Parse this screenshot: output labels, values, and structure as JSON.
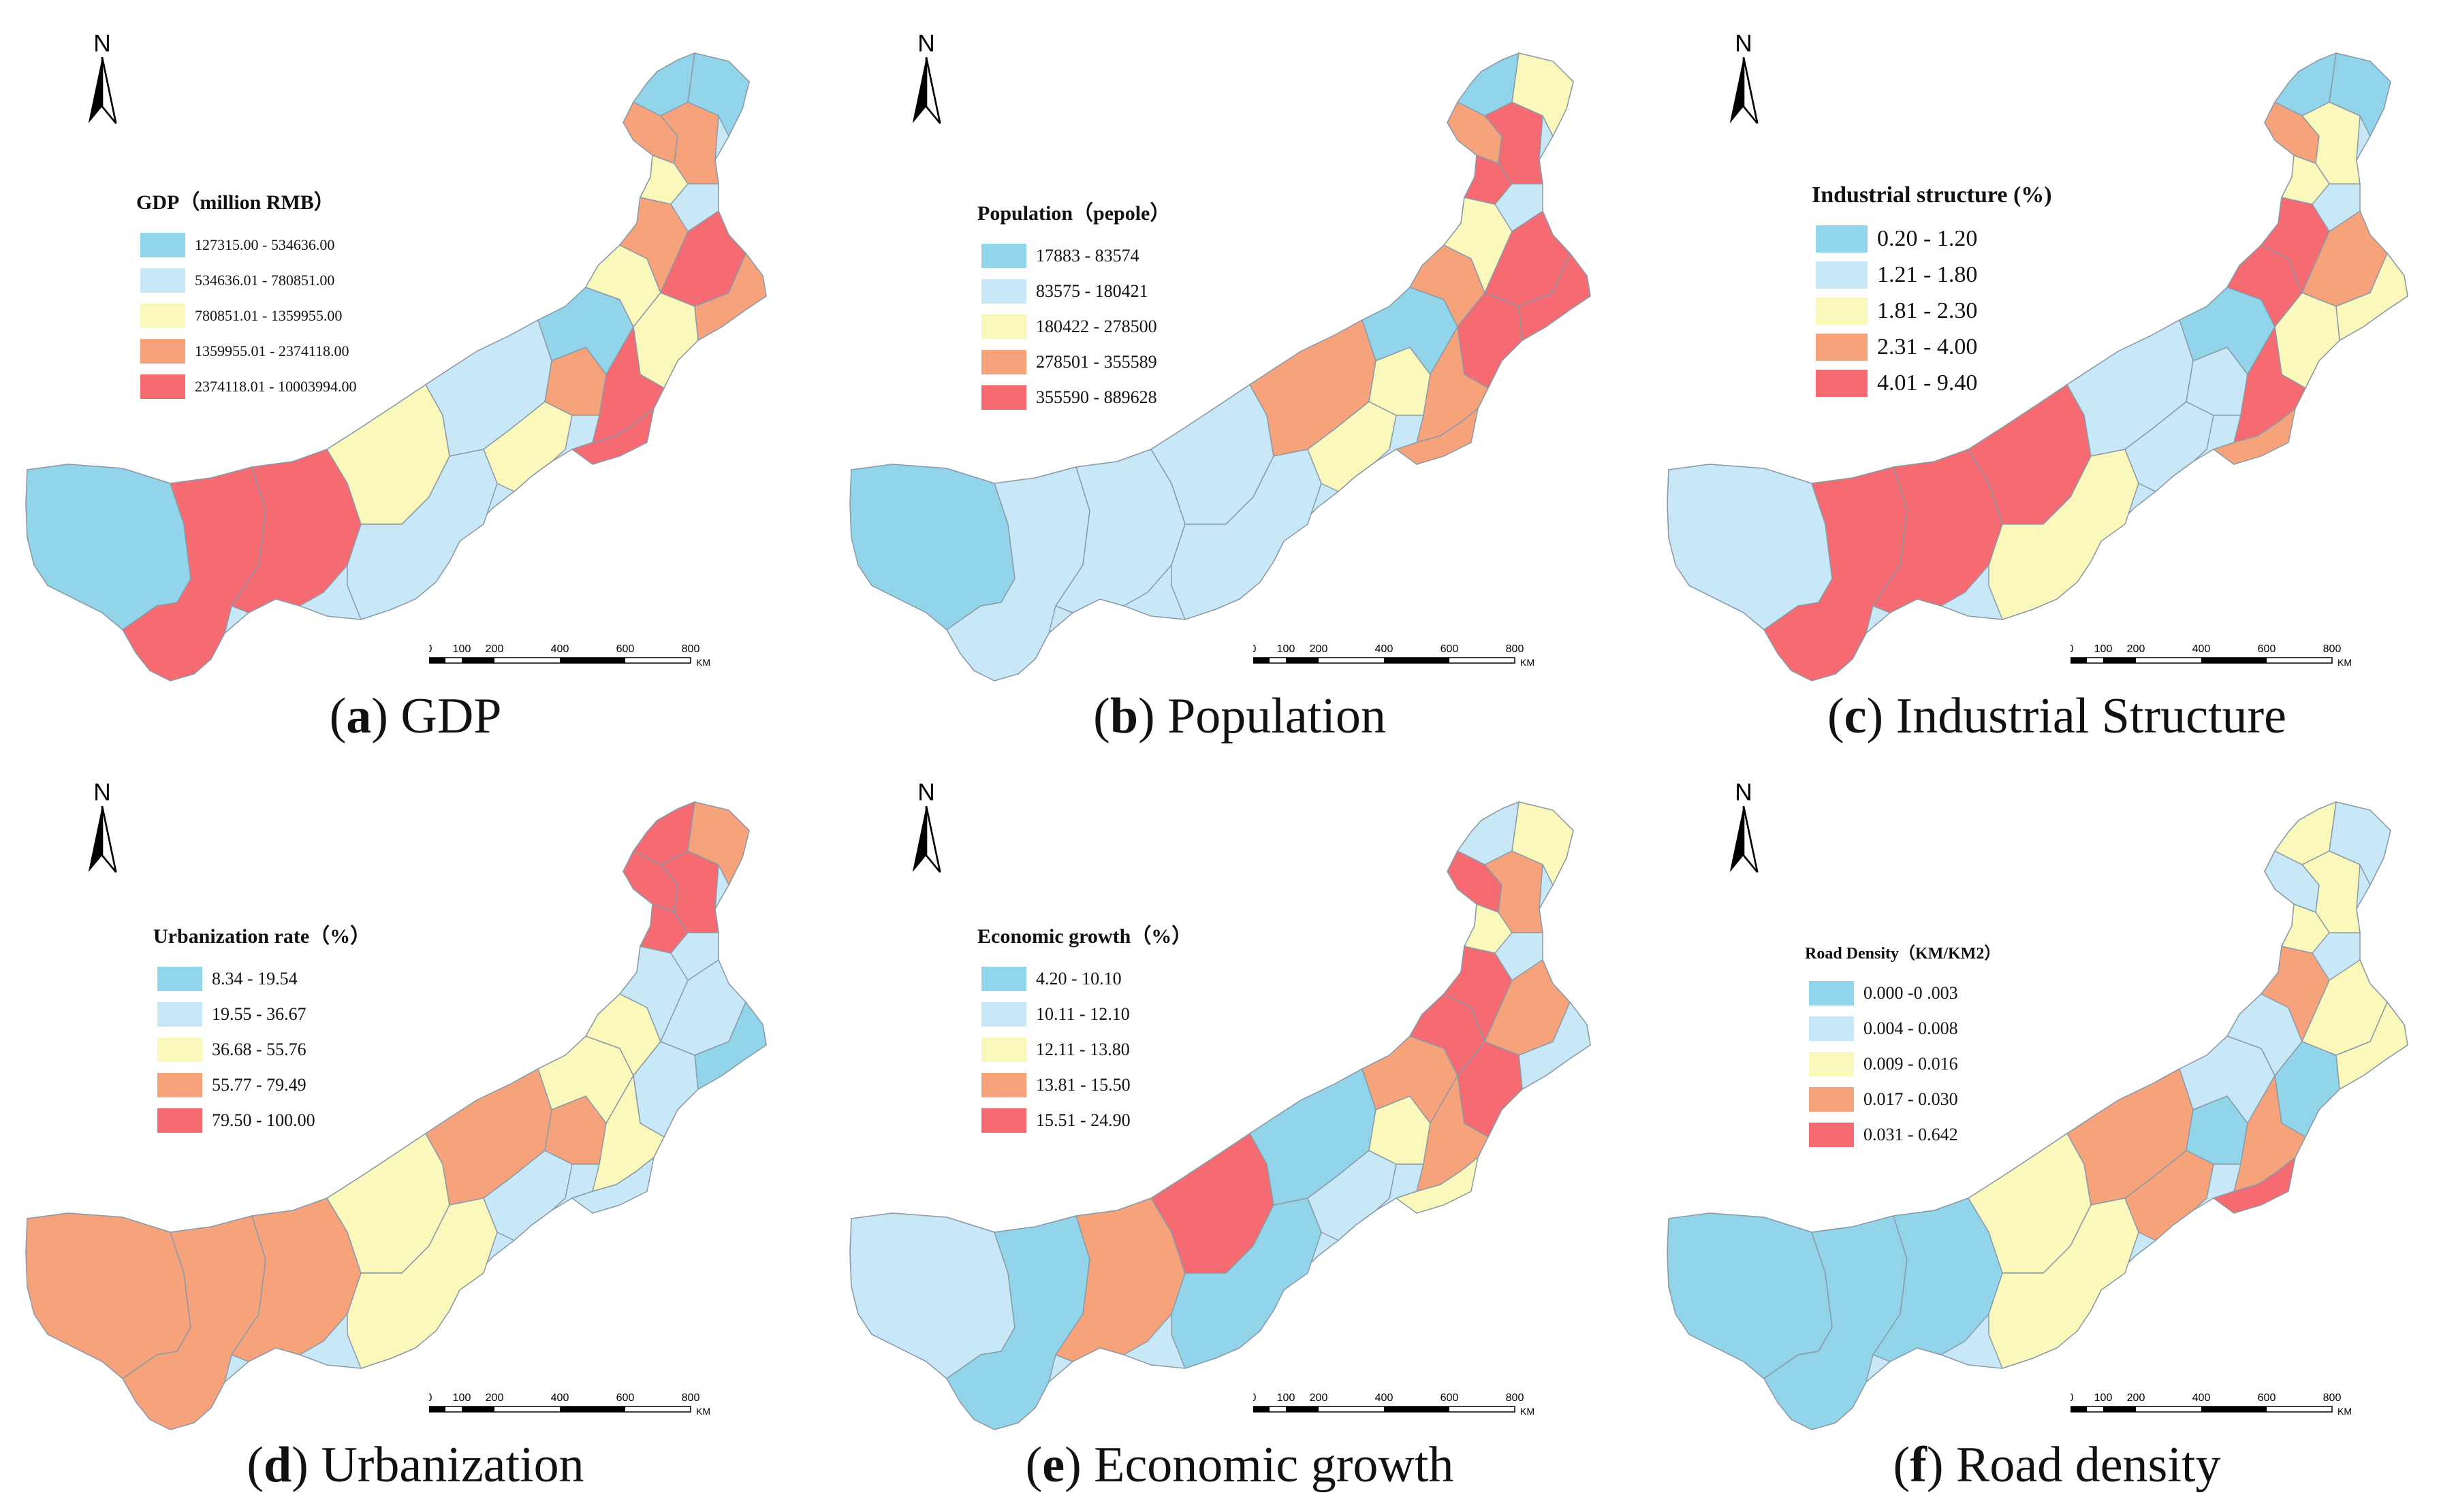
{
  "colors": {
    "class1": "#92d5ea",
    "class2": "#c8e8f8",
    "class3": "#fbf8bb",
    "class4": "#f6a37c",
    "class5": "#f66b72"
  },
  "north_label": "N",
  "scale": {
    "ticks": [
      "0",
      "100",
      "200",
      "400",
      "600",
      "800"
    ],
    "unit": "KM"
  },
  "panels": [
    {
      "letter": "a",
      "caption": "GDP",
      "legend_title": "GDP（million RMB）",
      "classes": [
        "127315.00 - 534636.00",
        "534636.01 - 780851.00",
        "780851.01 - 1359955.00",
        "1359955.01 - 2374118.00",
        "2374118.01 - 10003994.00"
      ],
      "west_classes": [
        1,
        5,
        5,
        3,
        2
      ]
    },
    {
      "letter": "b",
      "caption": "Population",
      "legend_title": "Population（pepole）",
      "classes": [
        "17883 - 83574",
        "83575 - 180421",
        "180422 - 278500",
        "278501 - 355589",
        "355590 - 889628"
      ],
      "west_classes": [
        1,
        2,
        2,
        2,
        4
      ]
    },
    {
      "letter": "c",
      "caption": "Industrial Structure",
      "legend_title": "Industrial structure (%)",
      "classes": [
        "0.20 - 1.20",
        "1.21 - 1.80",
        "1.81 - 2.30",
        "2.31 - 4.00",
        "4.01 - 9.40"
      ],
      "west_classes": [
        2,
        5,
        5,
        5,
        2
      ]
    },
    {
      "letter": "d",
      "caption": "Urbanization",
      "legend_title": "Urbanization rate（%）",
      "classes": [
        "8.34 - 19.54",
        "19.55 - 36.67",
        "36.68 - 55.76",
        "55.77 - 79.49",
        "79.50 - 100.00"
      ],
      "west_classes": [
        4,
        4,
        4,
        3,
        4
      ]
    },
    {
      "letter": "e",
      "caption": "Economic growth",
      "legend_title": "Economic growth（%）",
      "classes": [
        "4.20 - 10.10",
        "10.11 - 12.10",
        "12.11 - 13.80",
        "13.81 - 15.50",
        "15.51 - 24.90"
      ],
      "west_classes": [
        2,
        1,
        4,
        5,
        1
      ]
    },
    {
      "letter": "f",
      "caption": "Road density",
      "legend_title": "Road Density（KM/KM2）",
      "classes": [
        "0.000 -0 .003",
        "0.004 - 0.008",
        "0.009 - 0.016",
        "0.017 - 0.030",
        "0.031 - 0.642"
      ],
      "west_classes": [
        1,
        1,
        1,
        3,
        4
      ]
    }
  ]
}
